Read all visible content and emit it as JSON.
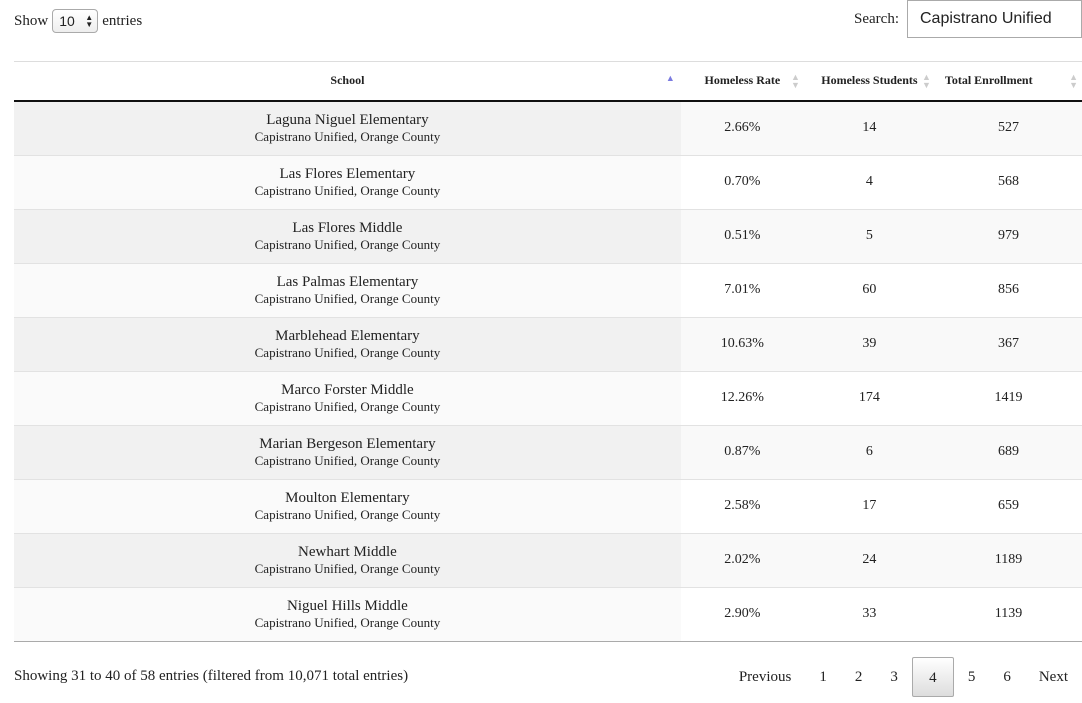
{
  "length": {
    "show_label": "Show",
    "value": "10",
    "entries_label": "entries"
  },
  "search": {
    "label": "Search:",
    "value": "Capistrano Unified"
  },
  "columns": [
    "School",
    "Homeless Rate",
    "Homeless Students",
    "Total Enrollment"
  ],
  "sort": {
    "column": "School",
    "direction": "ascending"
  },
  "rows": [
    {
      "school": "Laguna Niguel Elementary",
      "district": "Capistrano Unified, Orange County",
      "rate": "2.66%",
      "students": "14",
      "enrollment": "527"
    },
    {
      "school": "Las Flores Elementary",
      "district": "Capistrano Unified, Orange County",
      "rate": "0.70%",
      "students": "4",
      "enrollment": "568"
    },
    {
      "school": "Las Flores Middle",
      "district": "Capistrano Unified, Orange County",
      "rate": "0.51%",
      "students": "5",
      "enrollment": "979"
    },
    {
      "school": "Las Palmas Elementary",
      "district": "Capistrano Unified, Orange County",
      "rate": "7.01%",
      "students": "60",
      "enrollment": "856"
    },
    {
      "school": "Marblehead Elementary",
      "district": "Capistrano Unified, Orange County",
      "rate": "10.63%",
      "students": "39",
      "enrollment": "367"
    },
    {
      "school": "Marco Forster Middle",
      "district": "Capistrano Unified, Orange County",
      "rate": "12.26%",
      "students": "174",
      "enrollment": "1419"
    },
    {
      "school": "Marian Bergeson Elementary",
      "district": "Capistrano Unified, Orange County",
      "rate": "0.87%",
      "students": "6",
      "enrollment": "689"
    },
    {
      "school": "Moulton Elementary",
      "district": "Capistrano Unified, Orange County",
      "rate": "2.58%",
      "students": "17",
      "enrollment": "659"
    },
    {
      "school": "Newhart Middle",
      "district": "Capistrano Unified, Orange County",
      "rate": "2.02%",
      "students": "24",
      "enrollment": "1189"
    },
    {
      "school": "Niguel Hills Middle",
      "district": "Capistrano Unified, Orange County",
      "rate": "2.90%",
      "students": "33",
      "enrollment": "1139"
    }
  ],
  "info": "Showing 31 to 40 of 58 entries (filtered from 10,071 total entries)",
  "pagination": {
    "previous": "Previous",
    "pages": [
      "1",
      "2",
      "3",
      "4",
      "5",
      "6"
    ],
    "current": "4",
    "next": "Next"
  }
}
